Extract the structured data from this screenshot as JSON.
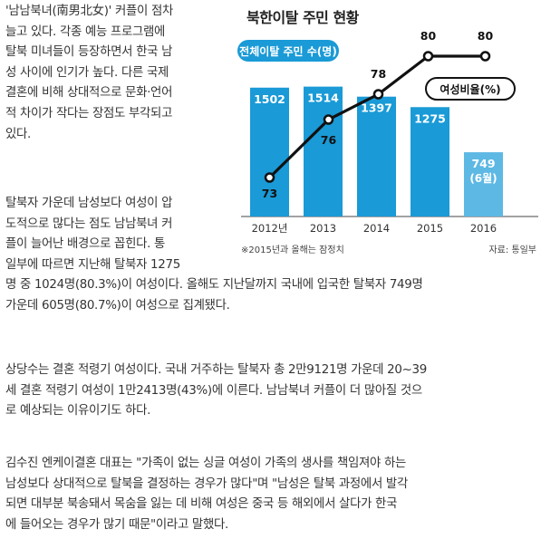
{
  "article": {
    "paragraphs": [
      {
        "lines": [
          "'남남북녀(南男北女)' 커플이 점차",
          "늘고 있다. 각종 예능 프로그램에",
          "탈북 미녀들이 등장하면서 한국 남",
          "성 사이에 인기가 높다. 다른 국제",
          "결혼에 비해 상대적으로 문화·언어",
          "적 차이가 작다는 장점도 부각되고",
          "있다."
        ]
      },
      {
        "lines": [
          "탈북자 가운데 남성보다 여성이 압",
          "도적으로 많다는 점도 남남북녀 커",
          "플이 늘어난 배경으로 꼽힌다. 통",
          "일부에 따르면 지난해 탈북자 1275",
          "명 중 1024명(80.3%)이 여성이다. 올해도 지난달까지 국내에 입국한 탈북자 749명",
          "가운데 605명(80.7%)이 여성으로 집계됐다."
        ]
      },
      {
        "lines": [
          "상당수는 결혼 적령기 여성이다. 국내 거주하는 탈북자 총 2만9121명 가운데 20~39",
          "세 결혼 적령기 여성이 1만2413명(43%)에 이른다. 남남북녀 커플이 더 많아질 것으",
          "로 예상되는 이유이기도 하다."
        ]
      },
      {
        "lines": [
          "김수진 엔케이결혼 대표는 \"가족이 없는 싱글 여성이 가족의 생사를 책임져야 하는",
          "남성보다 상대적으로 탈북을 결정하는 경우가 많다\"며 \"남성은 탈북 과정에서 발각",
          "되면 대부분 북송돼서 목숨을 잃는 데 비해 여성은 중국 등 해외에서 살다가 한국",
          "에 들어오는 경우가 많기 때문\"이라고 말했다."
        ]
      }
    ]
  },
  "chart_data": {
    "type": "bar",
    "title": "북한이탈 주민 현황",
    "categories": [
      "2012년",
      "2013",
      "2014",
      "2015",
      "2016"
    ],
    "series": [
      {
        "name": "전체이탈 주민 수(명)",
        "type": "bar",
        "values": [
          1502,
          1514,
          1397,
          1275,
          749
        ],
        "value_labels": [
          "1502",
          "1514",
          "1397",
          "1275",
          "749"
        ],
        "extra_label": "(6월)",
        "color": "#1a9ad6",
        "last_color": "#5db8e4"
      },
      {
        "name": "여성비율(%)",
        "type": "line",
        "values": [
          73,
          76,
          78,
          80,
          80
        ],
        "value_labels": [
          "73",
          "76",
          "78",
          "80",
          "80"
        ],
        "color": "#111111"
      }
    ],
    "footnote": "※2015년과 올해는 잠정치",
    "source": "자료: 통일부",
    "legend_badge_color": "#1a9ad6"
  }
}
